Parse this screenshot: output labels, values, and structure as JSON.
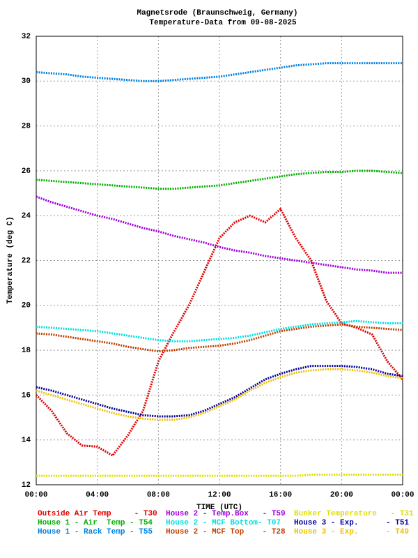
{
  "chart_data": {
    "type": "line",
    "title": "Magnetsrode (Braunschweig, Germany)",
    "subtitle": "Temperature-Data from 09-08-2025",
    "x_label": "TIME (UTC)",
    "y_label": "Temperature (deg C)",
    "x": [
      0,
      1,
      2,
      3,
      4,
      5,
      6,
      7,
      8,
      9,
      10,
      11,
      12,
      13,
      14,
      15,
      16,
      17,
      18,
      19,
      20,
      21,
      22,
      23,
      24
    ],
    "xlim": [
      0,
      24
    ],
    "xticks": [
      {
        "value": 0,
        "label": "00:00"
      },
      {
        "value": 4,
        "label": "04:00"
      },
      {
        "value": 8,
        "label": "08:00"
      },
      {
        "value": 12,
        "label": "12:00"
      },
      {
        "value": 16,
        "label": "16:00"
      },
      {
        "value": 20,
        "label": "20:00"
      },
      {
        "value": 24,
        "label": "00:00"
      }
    ],
    "ylim": [
      12,
      32
    ],
    "yticks": [
      12,
      14,
      16,
      18,
      20,
      22,
      24,
      26,
      28,
      30,
      32
    ],
    "grid": true,
    "series": [
      {
        "name": "Outside Air Temp     - T30",
        "color": "#e00000",
        "values": [
          16.0,
          15.3,
          14.3,
          13.75,
          13.7,
          13.3,
          14.2,
          15.3,
          17.5,
          18.8,
          20.0,
          21.5,
          23.0,
          23.7,
          24.0,
          23.7,
          24.3,
          23.0,
          22.0,
          20.2,
          19.2,
          19.0,
          18.7,
          17.5,
          16.7
        ]
      },
      {
        "name": "House 2 - Temp.Box   - T59",
        "color": "#a000e0",
        "values": [
          24.85,
          24.6,
          24.4,
          24.2,
          24.0,
          23.85,
          23.65,
          23.45,
          23.3,
          23.1,
          22.95,
          22.8,
          22.6,
          22.45,
          22.35,
          22.2,
          22.1,
          22.0,
          21.9,
          21.8,
          21.7,
          21.6,
          21.55,
          21.45,
          21.45
        ]
      },
      {
        "name": "Bunker Temperature   - T31",
        "color": "#e0e000",
        "values": [
          12.4,
          12.4,
          12.4,
          12.4,
          12.4,
          12.4,
          12.4,
          12.4,
          12.4,
          12.4,
          12.4,
          12.4,
          12.4,
          12.4,
          12.4,
          12.4,
          12.4,
          12.4,
          12.45,
          12.45,
          12.45,
          12.45,
          12.45,
          12.45,
          12.45
        ]
      },
      {
        "name": "House 1 - Air  Temp - T54",
        "color": "#00b000",
        "values": [
          25.6,
          25.55,
          25.5,
          25.45,
          25.4,
          25.35,
          25.3,
          25.25,
          25.2,
          25.2,
          25.25,
          25.3,
          25.35,
          25.45,
          25.55,
          25.65,
          25.75,
          25.85,
          25.9,
          25.95,
          25.95,
          26.0,
          26.0,
          25.95,
          25.9
        ]
      },
      {
        "name": "House 2 - MCF Bottom- T07",
        "color": "#00e0e0",
        "values": [
          19.05,
          19.0,
          18.95,
          18.9,
          18.85,
          18.75,
          18.65,
          18.55,
          18.45,
          18.4,
          18.4,
          18.45,
          18.5,
          18.55,
          18.65,
          18.8,
          18.95,
          19.05,
          19.15,
          19.2,
          19.25,
          19.3,
          19.25,
          19.2,
          19.2
        ]
      },
      {
        "name": "House 3 - Exp.      - T51",
        "color": "#0000a0",
        "values": [
          16.35,
          16.2,
          16.0,
          15.8,
          15.6,
          15.4,
          15.25,
          15.1,
          15.05,
          15.05,
          15.1,
          15.3,
          15.6,
          15.9,
          16.3,
          16.7,
          16.95,
          17.15,
          17.3,
          17.3,
          17.3,
          17.25,
          17.15,
          16.95,
          16.85
        ]
      },
      {
        "name": "House 1 - Rack Temp - T55",
        "color": "#0080e0",
        "values": [
          30.4,
          30.35,
          30.3,
          30.2,
          30.15,
          30.1,
          30.05,
          30.0,
          30.0,
          30.05,
          30.1,
          30.15,
          30.2,
          30.3,
          30.4,
          30.5,
          30.6,
          30.7,
          30.75,
          30.8,
          30.8,
          30.8,
          30.8,
          30.8,
          30.8
        ]
      },
      {
        "name": "House 2 - MCF Top    - T28",
        "color": "#c04000",
        "values": [
          18.75,
          18.7,
          18.6,
          18.5,
          18.4,
          18.3,
          18.15,
          18.05,
          17.95,
          18.0,
          18.1,
          18.15,
          18.2,
          18.3,
          18.45,
          18.65,
          18.85,
          18.95,
          19.05,
          19.1,
          19.15,
          19.05,
          19.0,
          18.95,
          18.9
        ]
      },
      {
        "name": "House 3 - Exp.      - T49",
        "color": "#f0c000",
        "values": [
          16.2,
          16.0,
          15.8,
          15.6,
          15.4,
          15.2,
          15.05,
          14.95,
          14.9,
          14.9,
          15.0,
          15.2,
          15.5,
          15.8,
          16.2,
          16.55,
          16.8,
          17.0,
          17.1,
          17.15,
          17.15,
          17.1,
          17.0,
          16.85,
          16.75
        ]
      }
    ]
  }
}
